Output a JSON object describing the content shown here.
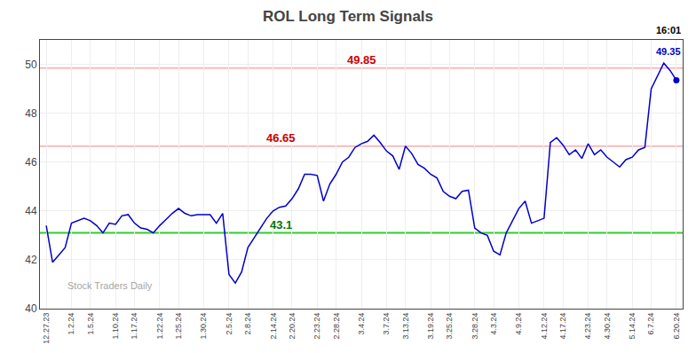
{
  "chart_data": {
    "type": "line",
    "title": "ROL Long Term Signals",
    "categories": [
      "12.27.23",
      null,
      null,
      null,
      "1.2.24",
      null,
      null,
      "1.5.24",
      null,
      null,
      null,
      "1.10.24",
      null,
      null,
      "1.17.24",
      null,
      null,
      null,
      "1.22.24",
      null,
      null,
      "1.25.24",
      null,
      null,
      null,
      "1.30.24",
      null,
      null,
      null,
      "2.5.24",
      null,
      null,
      "2.8.24",
      null,
      null,
      null,
      "2.14.24",
      null,
      null,
      "2.20.24",
      null,
      null,
      null,
      "2.23.24",
      null,
      null,
      "2.28.24",
      null,
      null,
      null,
      "3.4.24",
      null,
      null,
      null,
      "3.7.24",
      null,
      null,
      "3.13.24",
      null,
      null,
      null,
      "3.19.24",
      null,
      null,
      "3.25.24",
      null,
      null,
      null,
      "3.28.24",
      null,
      null,
      "4.3.24",
      null,
      null,
      null,
      "4.9.24",
      null,
      null,
      null,
      "4.12.24",
      null,
      null,
      "4.17.24",
      null,
      null,
      null,
      "4.23.24",
      null,
      null,
      "4.30.24",
      null,
      null,
      null,
      "5.14.24",
      null,
      null,
      "6.7.24",
      null,
      null,
      null,
      "6.20.24"
    ],
    "values": [
      43.4,
      41.9,
      42.2,
      42.5,
      43.5,
      43.6,
      43.7,
      43.6,
      43.4,
      43.1,
      43.5,
      43.45,
      43.8,
      43.85,
      43.5,
      43.3,
      43.25,
      43.1,
      43.4,
      43.65,
      43.9,
      44.1,
      43.9,
      43.8,
      43.85,
      43.85,
      43.85,
      43.5,
      43.9,
      41.4,
      41.05,
      41.5,
      42.5,
      42.9,
      43.3,
      43.7,
      44.0,
      44.15,
      44.2,
      44.5,
      44.9,
      45.5,
      45.5,
      45.45,
      44.4,
      45.1,
      45.5,
      46.0,
      46.2,
      46.6,
      46.75,
      46.85,
      47.1,
      46.8,
      46.45,
      46.25,
      45.7,
      46.65,
      46.35,
      45.9,
      45.75,
      45.5,
      45.35,
      44.8,
      44.6,
      44.5,
      44.8,
      44.85,
      43.3,
      43.1,
      43.0,
      42.35,
      42.2,
      43.1,
      43.6,
      44.1,
      44.4,
      43.5,
      43.6,
      43.7,
      46.8,
      47.0,
      46.7,
      46.3,
      46.5,
      46.15,
      46.75,
      46.3,
      46.5,
      46.2,
      46.0,
      45.8,
      46.1,
      46.2,
      46.5,
      46.6,
      49.0,
      49.5,
      50.05,
      49.75,
      49.35
    ],
    "color": "#0000cc",
    "ylim": [
      40,
      51
    ],
    "yticks": [
      40,
      42,
      44,
      46,
      48,
      50
    ],
    "grid": true,
    "hlines": [
      {
        "value": 49.85,
        "label": "49.85",
        "color": "#ffaaaa",
        "label_color": "#cc0000"
      },
      {
        "value": 46.65,
        "label": "46.65",
        "color": "#ffaaaa",
        "label_color": "#cc0000"
      },
      {
        "value": 43.1,
        "label": "43.1",
        "color": "#33cc33",
        "label_color": "#007700"
      }
    ],
    "last_point": {
      "value": 49.35,
      "label": "49.35",
      "time": "16:01"
    },
    "annotations": [
      "Stock Traders Daily"
    ]
  }
}
